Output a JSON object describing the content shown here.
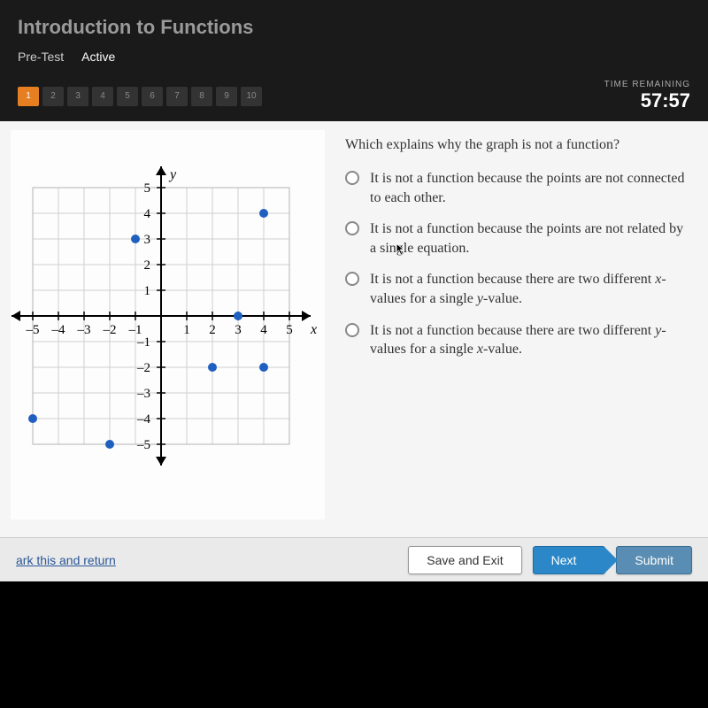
{
  "header": {
    "title": "Introduction to Functions",
    "tab_pretest": "Pre-Test",
    "tab_active": "Active"
  },
  "nav": {
    "questions": [
      "1",
      "2",
      "3",
      "4",
      "5",
      "6",
      "7",
      "8",
      "9",
      "10"
    ],
    "current_index": 0,
    "timer_label": "TIME REMAINING",
    "timer_value": "57:57"
  },
  "graph": {
    "x_axis_label": "x",
    "y_axis_label": "y",
    "xlim": [
      -5,
      5
    ],
    "ylim": [
      -5,
      5
    ],
    "tick_step": 1,
    "x_tick_labels": [
      -5,
      -4,
      -3,
      -2,
      -1,
      1,
      2,
      3,
      4,
      5
    ],
    "y_tick_labels": [
      5,
      4,
      3,
      2,
      1,
      -1,
      -2,
      -3,
      -4,
      -5
    ],
    "grid_color": "#d0d0d0",
    "axis_color": "#000000",
    "point_color": "#1f5fbf",
    "point_radius": 5,
    "points": [
      {
        "x": -5,
        "y": -4
      },
      {
        "x": -2,
        "y": -5
      },
      {
        "x": -1,
        "y": 3
      },
      {
        "x": 2,
        "y": -2
      },
      {
        "x": 3,
        "y": 0
      },
      {
        "x": 4,
        "y": -2
      },
      {
        "x": 4,
        "y": 4
      }
    ]
  },
  "question": {
    "text": "Which explains why the graph is not a function?",
    "options": [
      "It is not a function because the points are not connected to each other.",
      "It is not a function because the points are not related by a single equation.",
      "It is not a function because there are two different x-values for a single y-value.",
      "It is not a function because there are two different y-values for a single x-value."
    ]
  },
  "footer": {
    "mark_link": "ark this and return",
    "save_exit": "Save and Exit",
    "next": "Next",
    "submit": "Submit"
  },
  "colors": {
    "accent_orange": "#e67e22",
    "button_blue": "#2b87c7",
    "submit_blue": "#5a8db3",
    "background_dark": "#1a1a1a",
    "content_bg": "#f5f5f5"
  }
}
